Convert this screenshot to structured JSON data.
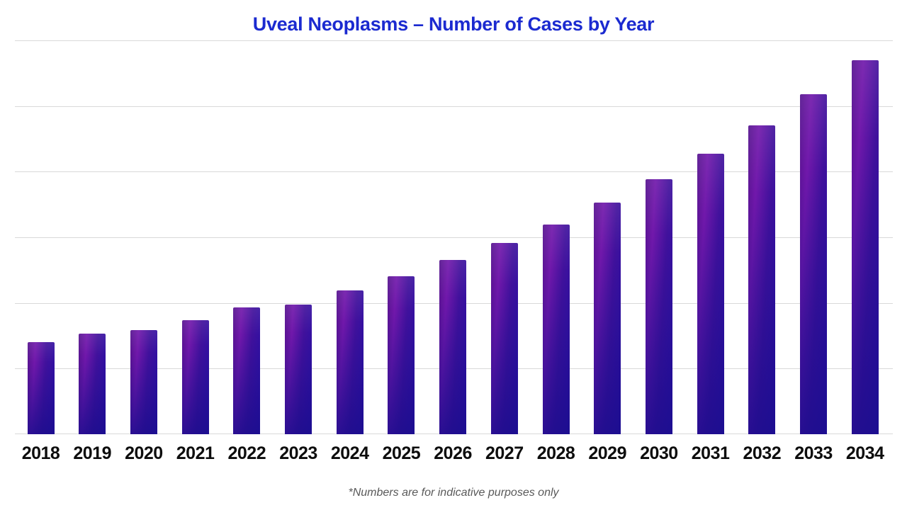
{
  "colors": {
    "title": "#1b2ad0",
    "label": "#0d0d0d",
    "footnote": "#595959",
    "grid": "#d9d9d9",
    "bar_h_left": "#55128e",
    "bar_h_highlight": "#7118ab",
    "bar_h_mid": "#41119c",
    "bar_h_right": "#2c10a4",
    "bar_bottom": "#190d8c"
  },
  "chart_data": {
    "type": "bar",
    "title": "Uveal Neoplasms – Number of Cases by Year",
    "categories": [
      "2018",
      "2019",
      "2020",
      "2021",
      "2022",
      "2023",
      "2024",
      "2025",
      "2026",
      "2027",
      "2028",
      "2029",
      "2030",
      "2031",
      "2032",
      "2033",
      "2034"
    ],
    "values": [
      1.4,
      1.53,
      1.59,
      1.74,
      1.93,
      1.98,
      2.19,
      2.41,
      2.65,
      2.91,
      3.19,
      3.53,
      3.88,
      4.27,
      4.7,
      5.18,
      5.7
    ],
    "values_note": "Relative units estimated from gridlines; the chart displays no numeric y-axis (one gridline interval = 1 unit)",
    "xlabel": "",
    "ylabel": "",
    "ylim": [
      0,
      6
    ],
    "grid": "horizontal, 7 lines including baseline",
    "legend": "none",
    "annotation": "*Numbers are for indicative purposes only"
  }
}
